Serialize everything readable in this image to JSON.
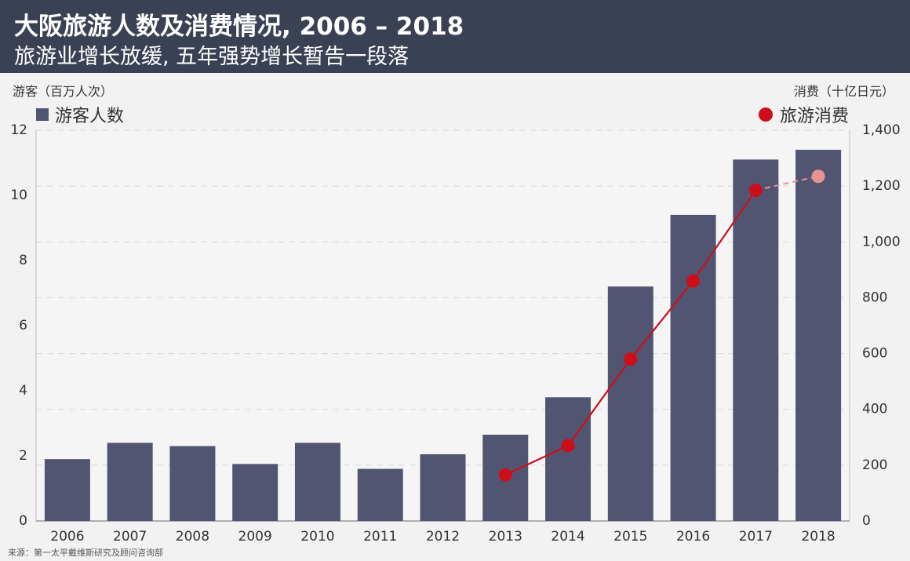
{
  "header": {
    "title": "大阪旅游人数及消费情况, 2006 – 2018",
    "subtitle": "旅游业增长放缓, 五年强势增长暂告一段落"
  },
  "source": "来源：第一太平戴维斯研究及顾问咨询部",
  "chart_data": {
    "type": "bar",
    "title": "大阪旅游人数及消费情况, 2006 – 2018",
    "subtitle": "旅游业增长放缓, 五年强势增长暂告一段落",
    "categories": [
      "2006",
      "2007",
      "2008",
      "2009",
      "2010",
      "2011",
      "2012",
      "2013",
      "2014",
      "2015",
      "2016",
      "2017",
      "2018"
    ],
    "left_axis": {
      "label": "游客（百万人次）",
      "range": [
        0,
        12
      ],
      "ticks": [
        "0",
        "2",
        "4",
        "6",
        "8",
        "10",
        "12"
      ]
    },
    "right_axis": {
      "label": "消费（十亿日元）",
      "range": [
        0,
        1400
      ],
      "ticks": [
        "0",
        "200",
        "400",
        "600",
        "800",
        "1,000",
        "1,200",
        "1,400"
      ]
    },
    "series": [
      {
        "name": "游客人数",
        "type": "bar",
        "axis": "left",
        "color": "#525572",
        "values": [
          1.9,
          2.4,
          2.3,
          1.75,
          2.4,
          1.6,
          2.05,
          2.65,
          3.8,
          7.2,
          9.4,
          11.1,
          11.4
        ]
      },
      {
        "name": "旅游消费",
        "type": "line",
        "axis": "right",
        "color": "#cc0e1a",
        "estimate_color": "#e89393",
        "values": [
          null,
          null,
          null,
          null,
          null,
          null,
          null,
          165,
          270,
          580,
          860,
          1185,
          1235
        ],
        "estimate_from_index": 12
      }
    ],
    "grid": true,
    "legend_position": "top"
  }
}
